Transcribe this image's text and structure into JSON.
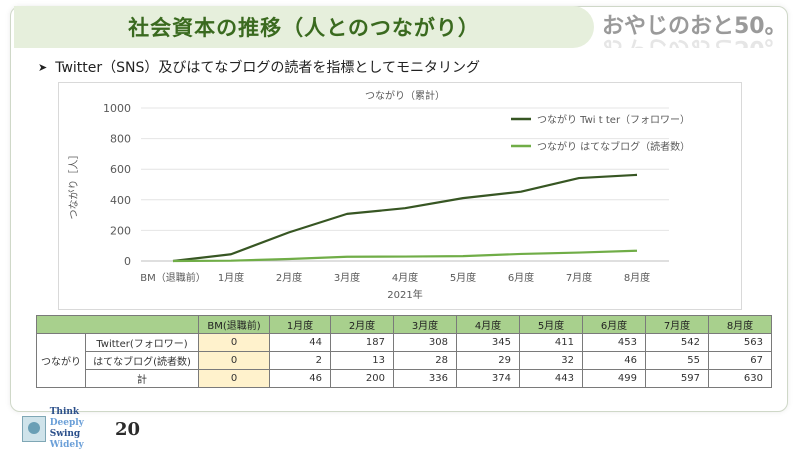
{
  "title": "社会資本の推移（人とのつながり）",
  "brand": "おやじのおと50。",
  "subtitle": "Twitter（SNS）及びはてなブログの読者を指標としてモニタリング",
  "chart_data": {
    "type": "line",
    "title": "つながり（累計）",
    "xlabel": "2021年",
    "ylabel": "つながり［人］",
    "categories": [
      "BM（退職前）",
      "1月度",
      "2月度",
      "3月度",
      "4月度",
      "5月度",
      "6月度",
      "7月度",
      "8月度"
    ],
    "ylim": [
      0,
      1000
    ],
    "yticks": [
      0,
      200,
      400,
      600,
      800,
      1000
    ],
    "grid": true,
    "legend_position": "top-right",
    "series": [
      {
        "name": "つながり Twi t ter（フォロワー）",
        "color": "#375623",
        "values": [
          0,
          44,
          187,
          308,
          345,
          411,
          453,
          542,
          563
        ]
      },
      {
        "name": "つながり はてなブログ（読者数）",
        "color": "#70ad47",
        "values": [
          0,
          2,
          13,
          28,
          29,
          32,
          46,
          55,
          67
        ]
      }
    ]
  },
  "table": {
    "headers": [
      "BM(退職前)",
      "1月度",
      "2月度",
      "3月度",
      "4月度",
      "5月度",
      "6月度",
      "7月度",
      "8月度"
    ],
    "group_label": "つながり",
    "rows": [
      {
        "label": "Twitter(フォロワー)",
        "values": [
          "0",
          "44",
          "187",
          "308",
          "345",
          "411",
          "453",
          "542",
          "563"
        ]
      },
      {
        "label": "はてなブログ(読者数)",
        "values": [
          "0",
          "2",
          "13",
          "28",
          "29",
          "32",
          "46",
          "55",
          "67"
        ]
      },
      {
        "label": "計",
        "values": [
          "0",
          "46",
          "200",
          "336",
          "374",
          "443",
          "499",
          "597",
          "630"
        ]
      }
    ]
  },
  "footer": {
    "line1_a": "Think ",
    "line1_b": "Deeply",
    "line2_a": "Swing ",
    "line2_b": "Widely",
    "number": "20"
  }
}
